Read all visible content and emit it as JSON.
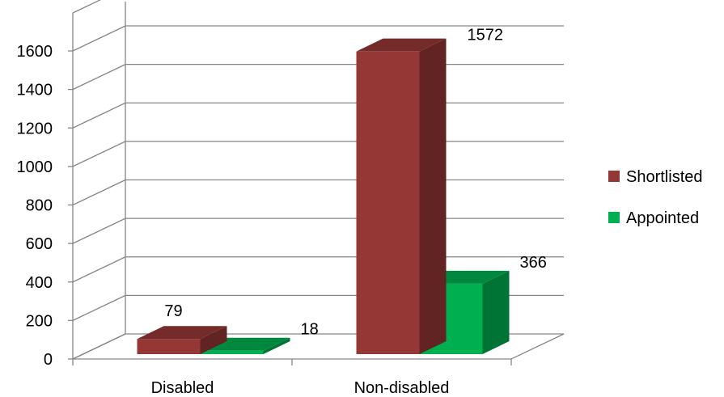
{
  "chart_data": {
    "type": "bar",
    "title": "",
    "xlabel": "",
    "ylabel": "",
    "categories": [
      "Disabled",
      "Non-disabled"
    ],
    "series": [
      {
        "name": "Shortlisted",
        "values": [
          79,
          1572
        ],
        "color": "#953735"
      },
      {
        "name": "Appointed",
        "values": [
          18,
          366
        ],
        "color": "#00B050"
      }
    ],
    "ylim": [
      0,
      1600
    ],
    "yticks": [
      0,
      200,
      400,
      600,
      800,
      1000,
      1200,
      1400,
      1600
    ],
    "grid": true,
    "legend": "right",
    "style": "3d-clustered-column"
  }
}
